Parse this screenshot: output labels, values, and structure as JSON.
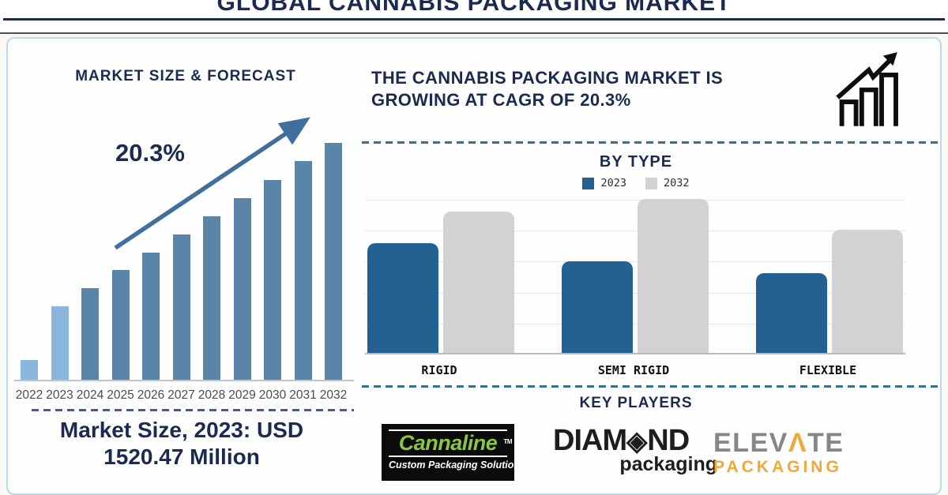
{
  "window_title": "GLOBAL CANNABIS PACKAGING MARKET",
  "left_panel": {
    "title": "MARKET SIZE & FORECAST",
    "cagr_label": "20.3%",
    "market_size_line1": "Market Size, 2023: USD",
    "market_size_line2": "1520.47 Million"
  },
  "right_panel": {
    "headline_line1": "THE CANNABIS PACKAGING MARKET IS",
    "headline_line2": "GROWING AT CAGR OF 20.3%",
    "growth_icon": "bar-chart-rising-arrow-icon",
    "by_type_title": "BY TYPE",
    "key_players_title": "KEY PLAYERS"
  },
  "key_players": {
    "cannaline": {
      "name": "Cannaline",
      "trademark": "TM",
      "tagline": "Custom Packaging Solutions",
      "name_color": "#8cc63f",
      "bg_color": "#0b0b0b"
    },
    "diamond": {
      "pre": "DIAM",
      "diamond_glyph": "◈",
      "post": "ND",
      "sub": "packaging",
      "color": "#1e1c1d"
    },
    "elevate": {
      "pre": "ELEV",
      "accent_letter": "Λ",
      "post": "TE",
      "sub": "PACKAGING",
      "gray": "#85878a",
      "orange": "#f0a83c"
    }
  },
  "chart_data": [
    {
      "id": "market-size-forecast",
      "type": "bar",
      "title": "MARKET SIZE & FORECAST",
      "categories": [
        "2022",
        "2023",
        "2024",
        "2025",
        "2026",
        "2027",
        "2028",
        "2029",
        "2030",
        "2031",
        "2032"
      ],
      "values_relative": [
        25,
        93,
        116,
        139,
        161,
        184,
        207,
        230,
        253,
        277,
        300
      ],
      "units": "relative bar height - chart shows no value axis",
      "known_values": {
        "2023": "USD 1520.47 Million"
      },
      "cagr_percent": 20.3,
      "annotation": "20.3%",
      "trend_arrow": true,
      "highlighted_years": [
        "2022",
        "2023"
      ],
      "bar_color": "#5b84a9",
      "highlight_bar_color": "#8ab5dd",
      "xlabel": "",
      "ylabel": ""
    },
    {
      "id": "by-type",
      "type": "grouped-bar",
      "title": "BY TYPE",
      "categories": [
        "RIGID",
        "SEMI RIGID",
        "FLEXIBLE"
      ],
      "series": [
        {
          "name": "2023",
          "color": "#226191",
          "values": [
            3.55,
            2.95,
            2.57
          ]
        },
        {
          "name": "2032",
          "color": "#d2d2d2",
          "values": [
            4.56,
            4.97,
            3.98
          ]
        }
      ],
      "units": "relative gridline units 0-5 - no value axis labels shown",
      "ylim": [
        0,
        5
      ],
      "grid": true,
      "legend_position": "top"
    }
  ],
  "colors": {
    "navy_text": "#1a2a50",
    "dashed_separator": "#36718f",
    "frame_border": "#bdd9ec",
    "axis_line": "#c4c4c4",
    "gridline": "#e6e6e6",
    "year_label_color": "#4c4c4c",
    "trend_arrow_color": "#3f6f9c"
  }
}
